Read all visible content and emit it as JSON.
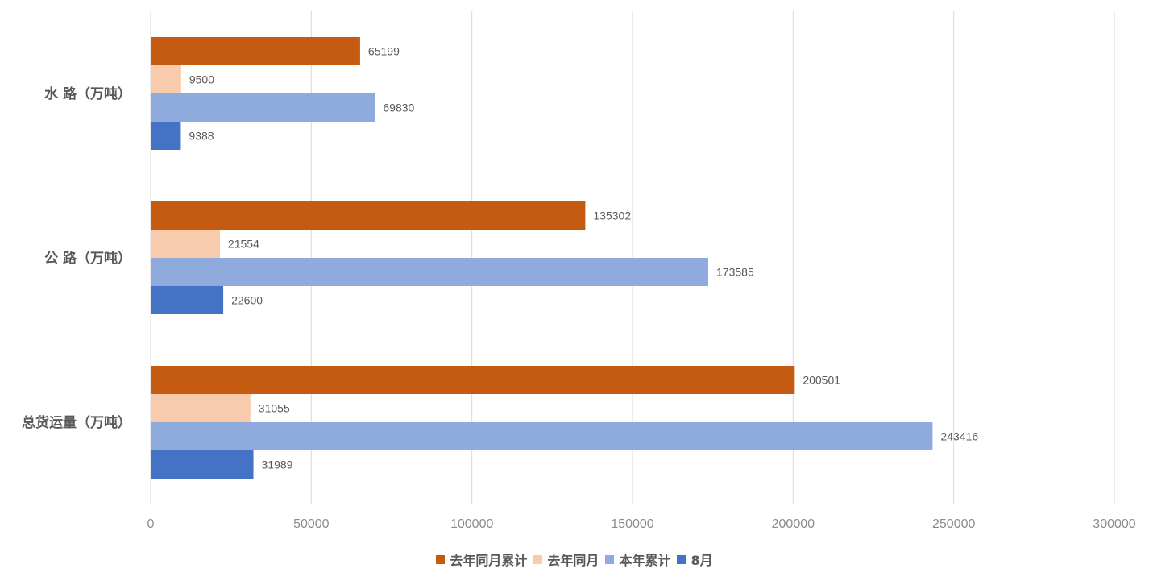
{
  "chart_data": {
    "type": "bar",
    "orientation": "horizontal",
    "categories": [
      "水 路（万吨）",
      "公 路（万吨）",
      "总货运量（万吨）"
    ],
    "series": [
      {
        "name": "去年同月累计",
        "color": "#C55A11",
        "values": [
          65199,
          135302,
          200501
        ]
      },
      {
        "name": "去年同月",
        "color": "#F8CBAD",
        "values": [
          9500,
          21554,
          31055
        ]
      },
      {
        "name": "本年累计",
        "color": "#8FAADC",
        "values": [
          69830,
          173585,
          243416
        ]
      },
      {
        "name": "8月",
        "color": "#4472C4",
        "values": [
          9388,
          22600,
          31989
        ]
      }
    ],
    "xlim": [
      0,
      300000
    ],
    "xticks": [
      "0",
      "50000",
      "100000",
      "150000",
      "200000",
      "250000",
      "300000"
    ],
    "grid": true,
    "legend_position": "bottom",
    "data_labels": true
  }
}
